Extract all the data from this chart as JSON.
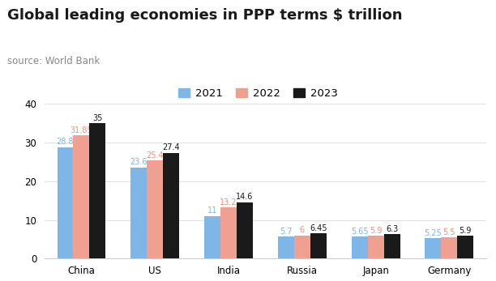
{
  "title": "Global leading economies in PPP terms $ trillion",
  "source": "source: World Bank",
  "categories": [
    "China",
    "US",
    "India",
    "Russia",
    "Japan",
    "Germany"
  ],
  "years": [
    "2021",
    "2022",
    "2023"
  ],
  "values": {
    "2021": [
      28.8,
      23.6,
      11.0,
      5.7,
      5.65,
      5.25
    ],
    "2022": [
      31.85,
      25.4,
      13.2,
      6.0,
      5.9,
      5.5
    ],
    "2023": [
      35.0,
      27.4,
      14.6,
      6.45,
      6.3,
      5.9
    ]
  },
  "labels": {
    "2021": [
      "28.8",
      "23.6",
      "11",
      "5.7",
      "5.65",
      "5.25"
    ],
    "2022": [
      "31.85",
      "25.4",
      "13.2",
      "6",
      "5.9",
      "5.5"
    ],
    "2023": [
      "35",
      "27.4",
      "14.6",
      "6.45",
      "6.3",
      "5.9"
    ]
  },
  "bar_colors": {
    "2021": "#7eb6e8",
    "2022": "#f0a090",
    "2023": "#1a1a1a"
  },
  "label_colors": {
    "2021": "#7eb6e8",
    "2022": "#f09080",
    "2023": "#1a1a1a"
  },
  "ylim": [
    0,
    40
  ],
  "yticks": [
    0,
    10,
    20,
    30,
    40
  ],
  "background_color": "#ffffff",
  "title_fontsize": 13,
  "source_fontsize": 8.5,
  "legend_fontsize": 9.5,
  "tick_fontsize": 8.5,
  "bar_label_fontsize": 7.0
}
